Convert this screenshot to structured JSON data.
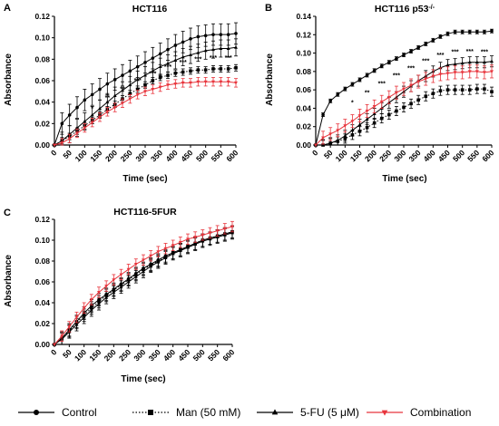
{
  "panels": [
    {
      "letter": "A",
      "title": "HCT116",
      "title_sup": "",
      "xlabel": "Time (sec)",
      "ylabel": "Absorbance",
      "xticks": [
        "0",
        "50",
        "100",
        "150",
        "200",
        "250",
        "300",
        "350",
        "400",
        "450",
        "500",
        "550",
        "600"
      ],
      "yticks": [
        "0.00",
        "0.02",
        "0.04",
        "0.06",
        "0.08",
        "0.10",
        "0.12"
      ],
      "stars": [
        "*",
        "**",
        "**",
        "***",
        "***",
        "***",
        "***",
        "***",
        "***",
        "***"
      ]
    },
    {
      "letter": "B",
      "title": "HCT116 p53",
      "title_sup": "-/-",
      "xlabel": "Time (sec)",
      "ylabel": "Absorbance",
      "xticks": [
        "0",
        "50",
        "100",
        "150",
        "200",
        "250",
        "300",
        "350",
        "400",
        "450",
        "500",
        "550",
        "600"
      ],
      "yticks": [
        "0.00",
        "0.02",
        "0.04",
        "0.06",
        "0.08",
        "0.10",
        "0.12",
        "0.14"
      ],
      "stars": [
        "*",
        "**",
        "***",
        "***",
        "***",
        "***",
        "***",
        "***",
        "***",
        "***"
      ]
    },
    {
      "letter": "C",
      "title": "HCT116-5FUR",
      "title_sup": "",
      "xlabel": "Time (sec)",
      "ylabel": "Absorbance",
      "xticks": [
        "0",
        "50",
        "100",
        "150",
        "200",
        "250",
        "300",
        "350",
        "400",
        "450",
        "500",
        "550",
        "600"
      ],
      "yticks": [
        "0.00",
        "0.02",
        "0.04",
        "0.06",
        "0.08",
        "0.10",
        "0.12"
      ],
      "stars": []
    }
  ],
  "legend": [
    {
      "label": "Control",
      "marker": "circle",
      "dash": "solid"
    },
    {
      "label": "Man (50 mM)",
      "marker": "square",
      "dash": "dotted"
    },
    {
      "label": "5-FU (5 μM)",
      "marker": "triangle",
      "dash": "solid"
    },
    {
      "label": "Combination",
      "marker": "triangle-down",
      "dash": "solid"
    }
  ],
  "colors": {
    "black": "#000000",
    "red": "#e8343c"
  },
  "chart_data": [
    {
      "type": "line",
      "panel": "A",
      "x": [
        0,
        25,
        50,
        75,
        100,
        125,
        150,
        175,
        200,
        225,
        250,
        275,
        300,
        325,
        350,
        375,
        400,
        425,
        450,
        475,
        500,
        525,
        550,
        575,
        600
      ],
      "ylim": [
        0,
        0.12
      ],
      "xlim": [
        0,
        600
      ],
      "series": [
        {
          "name": "Control",
          "values": [
            0.0,
            0.02,
            0.028,
            0.035,
            0.042,
            0.047,
            0.052,
            0.057,
            0.061,
            0.065,
            0.069,
            0.073,
            0.077,
            0.081,
            0.085,
            0.089,
            0.093,
            0.096,
            0.099,
            0.101,
            0.102,
            0.103,
            0.103,
            0.103,
            0.104
          ],
          "error": 0.01
        },
        {
          "name": "Man (50 mM)",
          "values": [
            0.0,
            0.004,
            0.008,
            0.013,
            0.018,
            0.023,
            0.028,
            0.033,
            0.038,
            0.043,
            0.048,
            0.052,
            0.056,
            0.06,
            0.063,
            0.065,
            0.067,
            0.068,
            0.069,
            0.07,
            0.07,
            0.071,
            0.071,
            0.071,
            0.072
          ],
          "error": 0.003
        },
        {
          "name": "5-FU (5 μM)",
          "values": [
            0.0,
            0.004,
            0.01,
            0.016,
            0.022,
            0.028,
            0.034,
            0.04,
            0.046,
            0.051,
            0.056,
            0.061,
            0.065,
            0.069,
            0.073,
            0.076,
            0.079,
            0.082,
            0.084,
            0.086,
            0.088,
            0.089,
            0.09,
            0.09,
            0.091
          ],
          "error": 0.008
        },
        {
          "name": "Combination",
          "values": [
            0.0,
            0.002,
            0.006,
            0.011,
            0.016,
            0.021,
            0.026,
            0.031,
            0.035,
            0.039,
            0.043,
            0.047,
            0.05,
            0.052,
            0.054,
            0.056,
            0.057,
            0.058,
            0.058,
            0.059,
            0.059,
            0.059,
            0.059,
            0.059,
            0.058
          ],
          "error": 0.004
        }
      ]
    },
    {
      "type": "line",
      "panel": "B",
      "x": [
        0,
        25,
        50,
        75,
        100,
        125,
        150,
        175,
        200,
        225,
        250,
        275,
        300,
        325,
        350,
        375,
        400,
        425,
        450,
        475,
        500,
        525,
        550,
        575,
        600
      ],
      "ylim": [
        0,
        0.14
      ],
      "xlim": [
        0,
        600
      ],
      "series": [
        {
          "name": "Control",
          "values": [
            0.0,
            0.033,
            0.048,
            0.055,
            0.061,
            0.066,
            0.071,
            0.076,
            0.081,
            0.086,
            0.09,
            0.094,
            0.098,
            0.102,
            0.106,
            0.11,
            0.114,
            0.118,
            0.121,
            0.123,
            0.123,
            0.123,
            0.123,
            0.123,
            0.124
          ],
          "error": 0.002
        },
        {
          "name": "Man (50 mM)",
          "values": [
            0.0,
            0.0,
            0.002,
            0.004,
            0.007,
            0.011,
            0.015,
            0.019,
            0.024,
            0.029,
            0.033,
            0.037,
            0.041,
            0.045,
            0.049,
            0.053,
            0.056,
            0.059,
            0.06,
            0.06,
            0.06,
            0.06,
            0.061,
            0.061,
            0.058
          ],
          "error": 0.005
        },
        {
          "name": "5-FU (5 μM)",
          "values": [
            0.0,
            0.0,
            0.002,
            0.005,
            0.01,
            0.016,
            0.022,
            0.028,
            0.034,
            0.04,
            0.046,
            0.052,
            0.058,
            0.064,
            0.07,
            0.075,
            0.08,
            0.084,
            0.087,
            0.088,
            0.089,
            0.09,
            0.09,
            0.09,
            0.091
          ],
          "error": 0.006
        },
        {
          "name": "Combination",
          "values": [
            0.0,
            0.008,
            0.012,
            0.016,
            0.021,
            0.026,
            0.032,
            0.037,
            0.042,
            0.047,
            0.052,
            0.057,
            0.061,
            0.065,
            0.069,
            0.072,
            0.075,
            0.077,
            0.078,
            0.079,
            0.079,
            0.08,
            0.08,
            0.079,
            0.08
          ],
          "error": 0.007
        }
      ]
    },
    {
      "type": "line",
      "panel": "C",
      "x": [
        0,
        25,
        50,
        75,
        100,
        125,
        150,
        175,
        200,
        225,
        250,
        275,
        300,
        325,
        350,
        375,
        400,
        425,
        450,
        475,
        500,
        525,
        550,
        575,
        600
      ],
      "ylim": [
        0,
        0.12
      ],
      "xlim": [
        0,
        600
      ],
      "series": [
        {
          "name": "Control",
          "values": [
            0.0,
            0.006,
            0.014,
            0.022,
            0.03,
            0.037,
            0.043,
            0.048,
            0.053,
            0.058,
            0.063,
            0.068,
            0.073,
            0.077,
            0.081,
            0.085,
            0.088,
            0.091,
            0.094,
            0.097,
            0.1,
            0.102,
            0.104,
            0.106,
            0.108
          ],
          "error": 0.006
        },
        {
          "name": "Man (50 mM)",
          "values": [
            0.0,
            0.006,
            0.013,
            0.021,
            0.028,
            0.035,
            0.041,
            0.047,
            0.052,
            0.057,
            0.062,
            0.067,
            0.072,
            0.076,
            0.08,
            0.084,
            0.088,
            0.091,
            0.094,
            0.097,
            0.1,
            0.102,
            0.104,
            0.106,
            0.108
          ],
          "error": 0.006
        },
        {
          "name": "5-FU (5 μM)",
          "values": [
            0.0,
            0.005,
            0.012,
            0.019,
            0.026,
            0.033,
            0.039,
            0.045,
            0.05,
            0.055,
            0.06,
            0.065,
            0.07,
            0.075,
            0.079,
            0.083,
            0.087,
            0.09,
            0.093,
            0.096,
            0.099,
            0.101,
            0.103,
            0.105,
            0.107
          ],
          "error": 0.006
        },
        {
          "name": "Combination",
          "values": [
            0.0,
            0.008,
            0.017,
            0.026,
            0.035,
            0.043,
            0.05,
            0.056,
            0.062,
            0.067,
            0.072,
            0.077,
            0.081,
            0.085,
            0.089,
            0.092,
            0.095,
            0.098,
            0.101,
            0.103,
            0.105,
            0.107,
            0.109,
            0.111,
            0.113
          ],
          "error": 0.005
        }
      ]
    }
  ]
}
